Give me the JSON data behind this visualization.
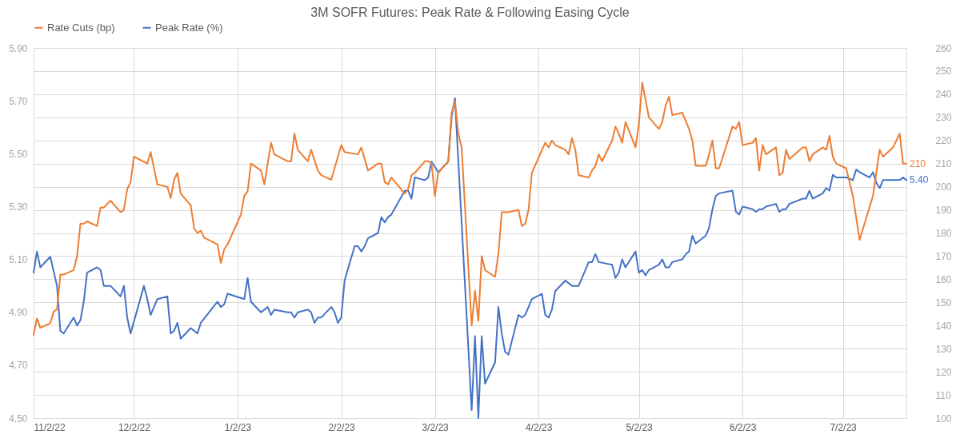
{
  "chart_data": {
    "type": "line",
    "title": "3M SOFR Futures: Peak Rate & Following Easing Cycle",
    "xlim": [
      "2022-11-02",
      "2023-07-21"
    ],
    "xticks": [
      {
        "value": "2022-11-02",
        "label": "11/2/22"
      },
      {
        "value": "2022-12-02",
        "label": "12/2/22"
      },
      {
        "value": "2023-01-02",
        "label": "1/2/23"
      },
      {
        "value": "2023-02-02",
        "label": "2/2/23"
      },
      {
        "value": "2023-03-02",
        "label": "3/2/23"
      },
      {
        "value": "2023-04-02",
        "label": "4/2/23"
      },
      {
        "value": "2023-05-02",
        "label": "5/2/23"
      },
      {
        "value": "2023-06-02",
        "label": "6/2/23"
      },
      {
        "value": "2023-07-02",
        "label": "7/2/23"
      }
    ],
    "ylim": [
      4.5,
      5.9
    ],
    "yticks": [
      {
        "value": 4.5,
        "label": "4.50"
      },
      {
        "value": 4.7,
        "label": "4.70"
      },
      {
        "value": 4.9,
        "label": "4.90"
      },
      {
        "value": 5.1,
        "label": "5.10"
      },
      {
        "value": 5.3,
        "label": "5.30"
      },
      {
        "value": 5.5,
        "label": "5.50"
      },
      {
        "value": 5.7,
        "label": "5.70"
      },
      {
        "value": 5.9,
        "label": "5.90"
      }
    ],
    "y2lim": [
      100,
      260
    ],
    "y2ticks": [
      100,
      110,
      120,
      130,
      140,
      150,
      160,
      170,
      180,
      190,
      200,
      210,
      220,
      230,
      240,
      250,
      260
    ],
    "grid": true,
    "legend": "top",
    "series": [
      {
        "name": "Rate Cuts (bp)",
        "color": "#ed7d31",
        "axis": "y2",
        "x": [
          "2022-11-02",
          "2022-11-03",
          "2022-11-04",
          "2022-11-07",
          "2022-11-08",
          "2022-11-09",
          "2022-11-10",
          "2022-11-11",
          "2022-11-14",
          "2022-11-15",
          "2022-11-16",
          "2022-11-17",
          "2022-11-18",
          "2022-11-21",
          "2022-11-22",
          "2022-11-23",
          "2022-11-25",
          "2022-11-28",
          "2022-11-29",
          "2022-11-30",
          "2022-12-01",
          "2022-12-02",
          "2022-12-06",
          "2022-12-07",
          "2022-12-09",
          "2022-12-12",
          "2022-12-13",
          "2022-12-14",
          "2022-12-15",
          "2022-12-16",
          "2022-12-19",
          "2022-12-20",
          "2022-12-21",
          "2022-12-22",
          "2022-12-23",
          "2022-12-27",
          "2022-12-28",
          "2022-12-29",
          "2022-12-30",
          "2023-01-03",
          "2023-01-04",
          "2023-01-05",
          "2023-01-06",
          "2023-01-09",
          "2023-01-10",
          "2023-01-12",
          "2023-01-13",
          "2023-01-17",
          "2023-01-18",
          "2023-01-19",
          "2023-01-20",
          "2023-01-23",
          "2023-01-24",
          "2023-01-26",
          "2023-01-27",
          "2023-01-30",
          "2023-02-01",
          "2023-02-02",
          "2023-02-03",
          "2023-02-07",
          "2023-02-08",
          "2023-02-10",
          "2023-02-13",
          "2023-02-14",
          "2023-02-15",
          "2023-02-16",
          "2023-02-17",
          "2023-02-21",
          "2023-02-22",
          "2023-02-23",
          "2023-02-24",
          "2023-02-27",
          "2023-02-28",
          "2023-03-01",
          "2023-03-02",
          "2023-03-03",
          "2023-03-06",
          "2023-03-07",
          "2023-03-08",
          "2023-03-09",
          "2023-03-10",
          "2023-03-13",
          "2023-03-14",
          "2023-03-15",
          "2023-03-16",
          "2023-03-17",
          "2023-03-20",
          "2023-03-21",
          "2023-03-22",
          "2023-03-24",
          "2023-03-27",
          "2023-03-28",
          "2023-03-29",
          "2023-03-30",
          "2023-03-31",
          "2023-04-04",
          "2023-04-05",
          "2023-04-06",
          "2023-04-07",
          "2023-04-10",
          "2023-04-11",
          "2023-04-12",
          "2023-04-13",
          "2023-04-14",
          "2023-04-17",
          "2023-04-18",
          "2023-04-19",
          "2023-04-20",
          "2023-04-21",
          "2023-04-24",
          "2023-04-25",
          "2023-04-26",
          "2023-04-27",
          "2023-04-28",
          "2023-05-01",
          "2023-05-02",
          "2023-05-03",
          "2023-05-05",
          "2023-05-08",
          "2023-05-09",
          "2023-05-10",
          "2023-05-11",
          "2023-05-12",
          "2023-05-15",
          "2023-05-17",
          "2023-05-18",
          "2023-05-19",
          "2023-05-22",
          "2023-05-23",
          "2023-05-24",
          "2023-05-25",
          "2023-05-26",
          "2023-05-30",
          "2023-05-31",
          "2023-06-01",
          "2023-06-02",
          "2023-06-05",
          "2023-06-06",
          "2023-06-07",
          "2023-06-08",
          "2023-06-09",
          "2023-06-12",
          "2023-06-13",
          "2023-06-14",
          "2023-06-15",
          "2023-06-16",
          "2023-06-20",
          "2023-06-21",
          "2023-06-22",
          "2023-06-23",
          "2023-06-26",
          "2023-06-27",
          "2023-06-28",
          "2023-06-29",
          "2023-06-30",
          "2023-07-03",
          "2023-07-05",
          "2023-07-07",
          "2023-07-11",
          "2023-07-13",
          "2023-07-14",
          "2023-07-17",
          "2023-07-19",
          "2023-07-20",
          "2023-07-21"
        ],
        "values": [
          136,
          143,
          139,
          141,
          146,
          147,
          162,
          162,
          164,
          170,
          184,
          184,
          185,
          183,
          191,
          191,
          194,
          189,
          190,
          199,
          202,
          213,
          210,
          215,
          201,
          200,
          195,
          203,
          206,
          197,
          192,
          182,
          180,
          181,
          178,
          175,
          167,
          173,
          175,
          188,
          196,
          198,
          210,
          207,
          201,
          219,
          214,
          211,
          211,
          223,
          216,
          211,
          216,
          207,
          205,
          203,
          213,
          218,
          215,
          214,
          217,
          207,
          210,
          210,
          202,
          201,
          204,
          197,
          199,
          205,
          206,
          211,
          211,
          210,
          196,
          206,
          211,
          232,
          237,
          223,
          217,
          140,
          155,
          142,
          170,
          164,
          161,
          171,
          189,
          189,
          190,
          183,
          184,
          190,
          206,
          219,
          217,
          220,
          218,
          216,
          214,
          221,
          216,
          205,
          204,
          207,
          209,
          214,
          211,
          220,
          226,
          223,
          219,
          228,
          217,
          227,
          245,
          230,
          225,
          228,
          235,
          239,
          231,
          232,
          225,
          220,
          209,
          209,
          214,
          220,
          208,
          208,
          226,
          225,
          228,
          218,
          219,
          221,
          207,
          218,
          214,
          217,
          205,
          206,
          216,
          212,
          217,
          217,
          211,
          214,
          217,
          216,
          222,
          213,
          210,
          208,
          196,
          177,
          196,
          216,
          213,
          217,
          223,
          210,
          210
        ],
        "value_labels": [
          null,
          null,
          null,
          null,
          null,
          null,
          null,
          null,
          null,
          null,
          null,
          null,
          null,
          null,
          null,
          null,
          null,
          null,
          null,
          null,
          null,
          null,
          null,
          null,
          null,
          null,
          null,
          null,
          null,
          null,
          null,
          null,
          null,
          null,
          null,
          null,
          null,
          null,
          null,
          null,
          null,
          null,
          null,
          null,
          null,
          null,
          null,
          null,
          null,
          null,
          null,
          null,
          null,
          null,
          null,
          null,
          null,
          null,
          null,
          null,
          null,
          null,
          null,
          null,
          null,
          null,
          null,
          null,
          null,
          null,
          null,
          null,
          null,
          null,
          null,
          null,
          null,
          null,
          null,
          null,
          null,
          null,
          null,
          null,
          null,
          null,
          null,
          null,
          null,
          null,
          null,
          null,
          null,
          null,
          null,
          null,
          null,
          null,
          null,
          null,
          null,
          null,
          null,
          null,
          null,
          null,
          null,
          null,
          null,
          null,
          null,
          null,
          null,
          null,
          null,
          null,
          null,
          null,
          null,
          null,
          null,
          null,
          null,
          null,
          null,
          null,
          null,
          null,
          null,
          null,
          null,
          null,
          null,
          null,
          null,
          null,
          null,
          null,
          null,
          null,
          null,
          null,
          null,
          null,
          null,
          null,
          null,
          null,
          null,
          null,
          null,
          null,
          null,
          null,
          null,
          null,
          null,
          null,
          null,
          null,
          null,
          null,
          null,
          null,
          "210"
        ]
      },
      {
        "name": "Peak Rate (%)",
        "color": "#4472c4",
        "axis": "y",
        "x": [
          "2022-11-02",
          "2022-11-03",
          "2022-11-04",
          "2022-11-07",
          "2022-11-09",
          "2022-11-10",
          "2022-11-11",
          "2022-11-14",
          "2022-11-15",
          "2022-11-16",
          "2022-11-17",
          "2022-11-18",
          "2022-11-21",
          "2022-11-22",
          "2022-11-23",
          "2022-11-25",
          "2022-11-28",
          "2022-11-29",
          "2022-11-30",
          "2022-12-01",
          "2022-12-05",
          "2022-12-06",
          "2022-12-07",
          "2022-12-09",
          "2022-12-12",
          "2022-12-13",
          "2022-12-14",
          "2022-12-15",
          "2022-12-16",
          "2022-12-19",
          "2022-12-21",
          "2022-12-22",
          "2022-12-27",
          "2022-12-28",
          "2022-12-29",
          "2022-12-30",
          "2023-01-04",
          "2023-01-05",
          "2023-01-06",
          "2023-01-09",
          "2023-01-11",
          "2023-01-12",
          "2023-01-13",
          "2023-01-17",
          "2023-01-18",
          "2023-01-19",
          "2023-01-20",
          "2023-01-23",
          "2023-01-24",
          "2023-01-25",
          "2023-01-26",
          "2023-01-27",
          "2023-01-30",
          "2023-01-31",
          "2023-02-01",
          "2023-02-02",
          "2023-02-03",
          "2023-02-06",
          "2023-02-07",
          "2023-02-08",
          "2023-02-09",
          "2023-02-10",
          "2023-02-13",
          "2023-02-14",
          "2023-02-15",
          "2023-02-16",
          "2023-02-17",
          "2023-02-21",
          "2023-02-22",
          "2023-02-23",
          "2023-02-24",
          "2023-02-27",
          "2023-02-28",
          "2023-03-01",
          "2023-03-02",
          "2023-03-03",
          "2023-03-06",
          "2023-03-07",
          "2023-03-08",
          "2023-03-13",
          "2023-03-14",
          "2023-03-15",
          "2023-03-16",
          "2023-03-17",
          "2023-03-20",
          "2023-03-21",
          "2023-03-22",
          "2023-03-23",
          "2023-03-24",
          "2023-03-27",
          "2023-03-28",
          "2023-03-29",
          "2023-03-31",
          "2023-04-03",
          "2023-04-04",
          "2023-04-05",
          "2023-04-06",
          "2023-04-07",
          "2023-04-10",
          "2023-04-12",
          "2023-04-13",
          "2023-04-14",
          "2023-04-17",
          "2023-04-18",
          "2023-04-19",
          "2023-04-20",
          "2023-04-24",
          "2023-04-25",
          "2023-04-26",
          "2023-04-27",
          "2023-04-28",
          "2023-05-01",
          "2023-05-02",
          "2023-05-03",
          "2023-05-04",
          "2023-05-05",
          "2023-05-08",
          "2023-05-09",
          "2023-05-10",
          "2023-05-11",
          "2023-05-12",
          "2023-05-15",
          "2023-05-16",
          "2023-05-17",
          "2023-05-18",
          "2023-05-19",
          "2023-05-22",
          "2023-05-23",
          "2023-05-24",
          "2023-05-25",
          "2023-05-26",
          "2023-05-30",
          "2023-05-31",
          "2023-06-01",
          "2023-06-02",
          "2023-06-05",
          "2023-06-06",
          "2023-06-07",
          "2023-06-08",
          "2023-06-09",
          "2023-06-12",
          "2023-06-13",
          "2023-06-14",
          "2023-06-15",
          "2023-06-16",
          "2023-06-20",
          "2023-06-21",
          "2023-06-22",
          "2023-06-23",
          "2023-06-26",
          "2023-06-27",
          "2023-06-28",
          "2023-06-29",
          "2023-06-30",
          "2023-07-03",
          "2023-07-05",
          "2023-07-06",
          "2023-07-07",
          "2023-07-10",
          "2023-07-11",
          "2023-07-12",
          "2023-07-13",
          "2023-07-14",
          "2023-07-17",
          "2023-07-18",
          "2023-07-19",
          "2023-07-20",
          "2023-07-21"
        ],
        "values": [
          5.05,
          5.13,
          5.07,
          5.11,
          5.0,
          4.83,
          4.82,
          4.88,
          4.85,
          4.87,
          4.94,
          5.05,
          5.07,
          5.06,
          5.0,
          5.0,
          4.96,
          5.0,
          4.88,
          4.82,
          5.0,
          4.95,
          4.89,
          4.95,
          4.96,
          4.82,
          4.83,
          4.86,
          4.8,
          4.84,
          4.82,
          4.86,
          4.94,
          4.92,
          4.93,
          4.97,
          4.95,
          5.03,
          4.94,
          4.9,
          4.92,
          4.89,
          4.91,
          4.9,
          4.9,
          4.88,
          4.9,
          4.91,
          4.9,
          4.86,
          4.88,
          4.88,
          4.92,
          4.9,
          4.86,
          4.88,
          5.02,
          5.15,
          5.15,
          5.13,
          5.15,
          5.18,
          5.2,
          5.26,
          5.24,
          5.26,
          5.27,
          5.36,
          5.36,
          5.33,
          5.41,
          5.4,
          5.41,
          5.47,
          5.45,
          5.43,
          5.47,
          5.64,
          5.71,
          4.53,
          4.81,
          4.5,
          4.81,
          4.63,
          4.71,
          4.92,
          4.82,
          4.75,
          4.74,
          4.89,
          4.88,
          4.89,
          4.95,
          4.97,
          4.89,
          4.88,
          4.91,
          4.98,
          5.02,
          5.0,
          5.0,
          5.0,
          5.09,
          5.09,
          5.12,
          5.09,
          5.08,
          5.03,
          5.05,
          5.1,
          5.07,
          5.13,
          5.05,
          5.06,
          5.04,
          5.06,
          5.08,
          5.1,
          5.07,
          5.07,
          5.09,
          5.1,
          5.12,
          5.13,
          5.19,
          5.16,
          5.19,
          5.22,
          5.29,
          5.34,
          5.35,
          5.36,
          5.28,
          5.27,
          5.3,
          5.29,
          5.28,
          5.29,
          5.29,
          5.3,
          5.31,
          5.28,
          5.29,
          5.29,
          5.31,
          5.33,
          5.33,
          5.36,
          5.33,
          5.35,
          5.37,
          5.36,
          5.42,
          5.41,
          5.41,
          5.4,
          5.44,
          5.43,
          5.41,
          5.43,
          5.39,
          5.37,
          5.4,
          5.4,
          5.4,
          5.4,
          5.41,
          5.4
        ],
        "value_labels": [
          null,
          null,
          null,
          null,
          null,
          null,
          null,
          null,
          null,
          null,
          null,
          null,
          null,
          null,
          null,
          null,
          null,
          null,
          null,
          null,
          null,
          null,
          null,
          null,
          null,
          null,
          null,
          null,
          null,
          null,
          null,
          null,
          null,
          null,
          null,
          null,
          null,
          null,
          null,
          null,
          null,
          null,
          null,
          null,
          null,
          null,
          null,
          null,
          null,
          null,
          null,
          null,
          null,
          null,
          null,
          null,
          null,
          null,
          null,
          null,
          null,
          null,
          null,
          null,
          null,
          null,
          null,
          null,
          null,
          null,
          null,
          null,
          null,
          null,
          null,
          null,
          null,
          null,
          null,
          null,
          null,
          null,
          null,
          null,
          null,
          null,
          null,
          null,
          null,
          null,
          null,
          null,
          null,
          null,
          null,
          null,
          null,
          null,
          null,
          null,
          null,
          null,
          null,
          null,
          null,
          null,
          null,
          null,
          null,
          null,
          null,
          null,
          null,
          null,
          null,
          null,
          null,
          null,
          null,
          null,
          null,
          null,
          null,
          null,
          null,
          null,
          null,
          null,
          null,
          null,
          null,
          null,
          null,
          null,
          null,
          null,
          null,
          null,
          null,
          null,
          null,
          null,
          null,
          null,
          null,
          null,
          null,
          null,
          null,
          null,
          null,
          null,
          null,
          null,
          null,
          null,
          null,
          null,
          null,
          null,
          null,
          null,
          null,
          null,
          null,
          null,
          null,
          "5.40"
        ]
      }
    ]
  }
}
